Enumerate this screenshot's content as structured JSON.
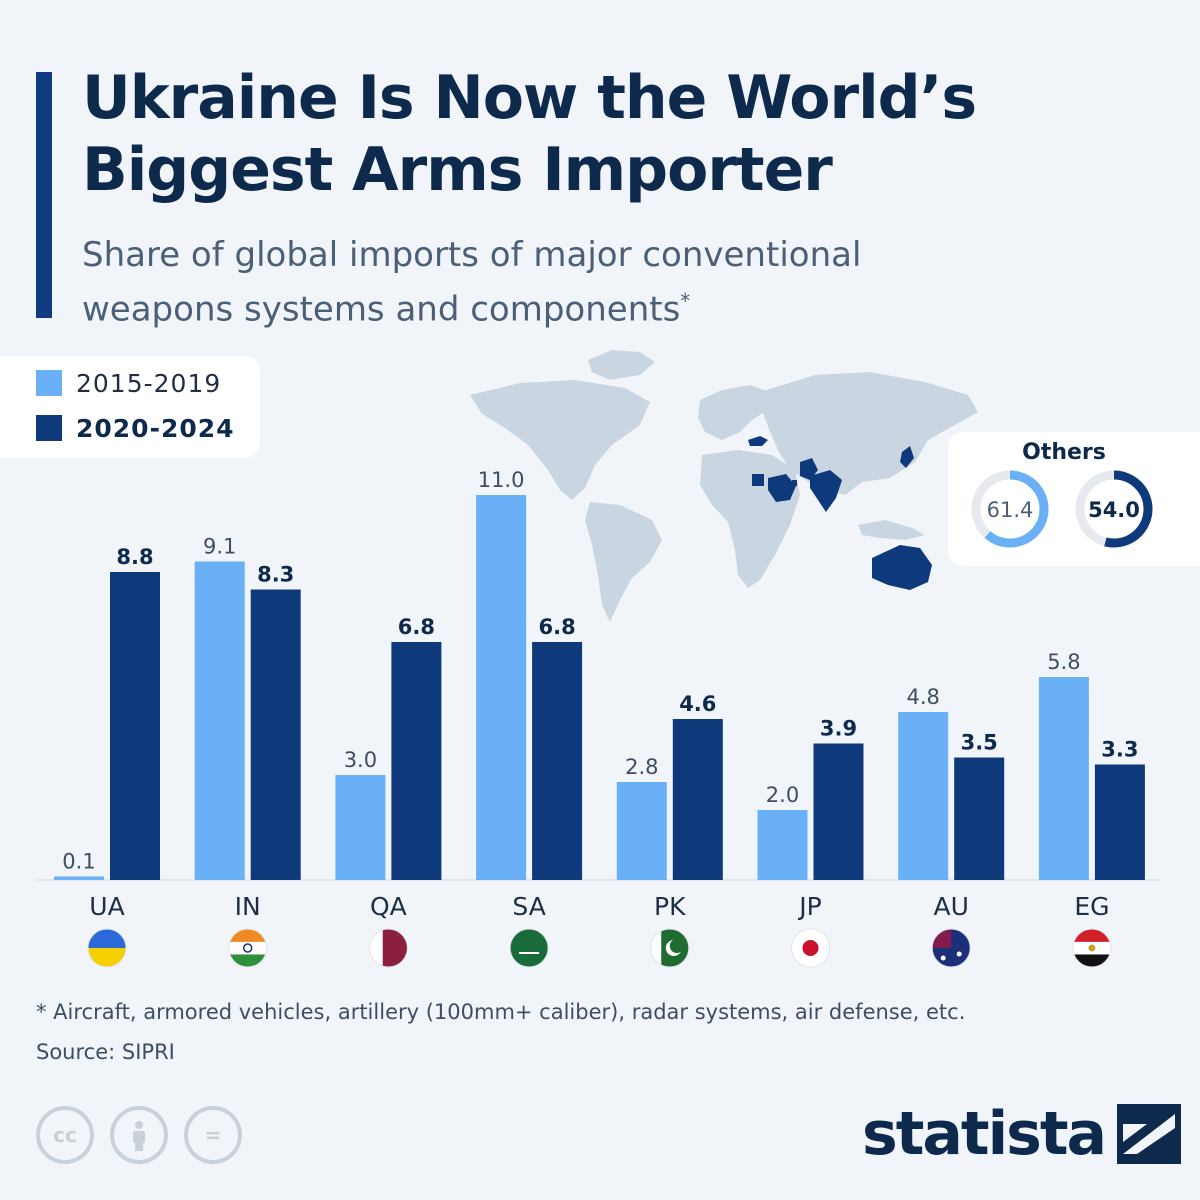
{
  "title": "Ukraine Is Now the World’s Biggest Arms Importer",
  "subtitle": "Share of global imports of major conventional weapons systems and components",
  "subtitle_marker": "*",
  "legend": {
    "items": [
      {
        "label": "2015-2019",
        "color": "#6ab0f7"
      },
      {
        "label": "2020-2024",
        "color": "#0e3a7c"
      }
    ]
  },
  "others": {
    "title": "Others",
    "values": [
      61.4,
      54.0
    ],
    "labels": [
      "61.4",
      "54.0"
    ]
  },
  "chart_data": {
    "type": "bar",
    "title": "Ukraine Is Now the World’s Biggest Arms Importer",
    "subtitle": "Share of global imports of major conventional weapons systems and components",
    "categories": [
      "UA",
      "IN",
      "QA",
      "SA",
      "PK",
      "JP",
      "AU",
      "EG"
    ],
    "series": [
      {
        "name": "2015-2019",
        "color": "#6ab0f7",
        "values": [
          0.1,
          9.1,
          3.0,
          11.0,
          2.8,
          2.0,
          4.8,
          5.8
        ],
        "labels": [
          "0.1",
          "9.1",
          "3.0",
          "11.0",
          "2.8",
          "2.0",
          "4.8",
          "5.8"
        ]
      },
      {
        "name": "2020-2024",
        "color": "#0e3a7c",
        "values": [
          8.8,
          8.3,
          6.8,
          6.8,
          4.6,
          3.9,
          3.5,
          3.3
        ],
        "labels": [
          "8.8",
          "8.3",
          "6.8",
          "6.8",
          "4.6",
          "3.9",
          "3.5",
          "3.3"
        ]
      }
    ],
    "ylim": [
      0,
      11.0
    ],
    "grid": false,
    "legend_position": "top-left"
  },
  "footnote": "* Aircraft, armored vehicles, artillery (100mm+ caliber), radar systems, air defense, etc.",
  "source": "Source: SIPRI",
  "brand": "statista",
  "license_icons": [
    "cc-icon",
    "attribution-icon",
    "no-derivatives-icon"
  ]
}
